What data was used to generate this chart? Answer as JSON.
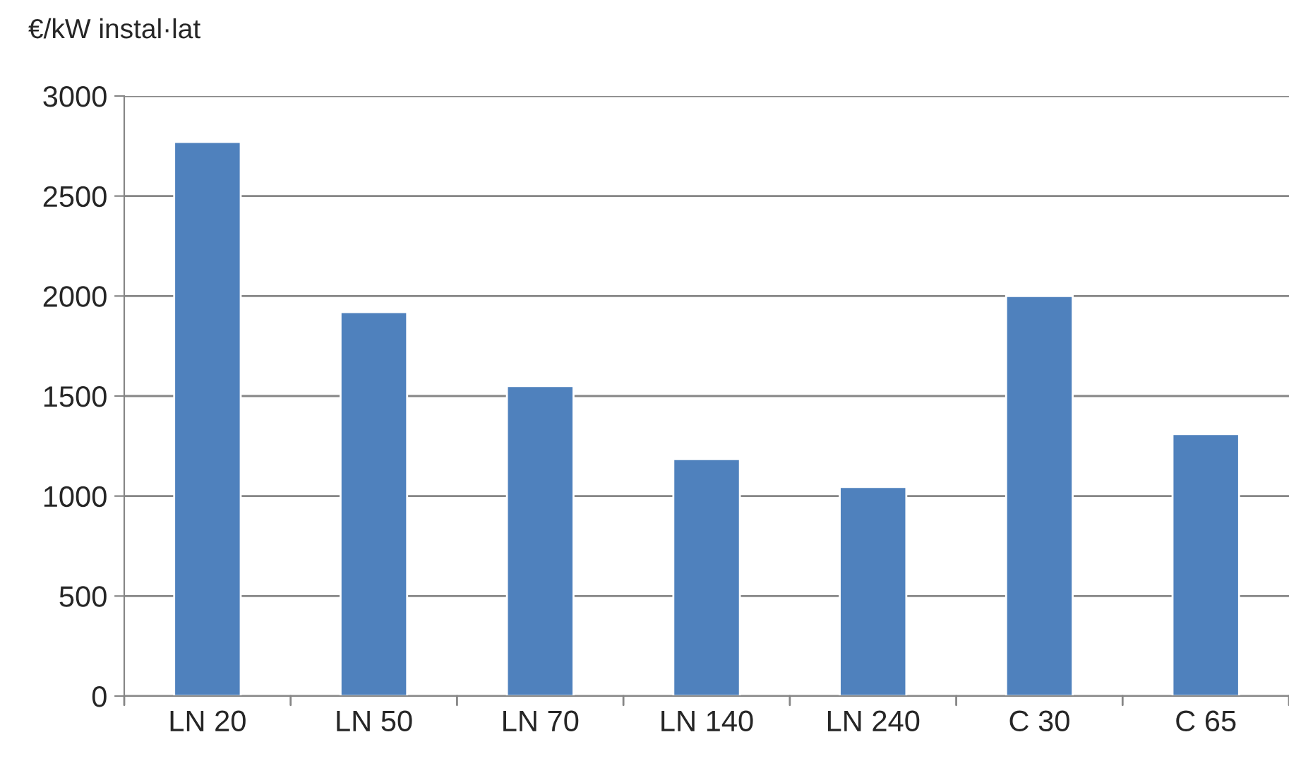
{
  "chart_data": {
    "type": "bar",
    "ylabel": "€/kW instal·lat",
    "categories": [
      "LN 20",
      "LN 50",
      "LN 70",
      "LN 140",
      "LN 240",
      "C 30",
      "C 65"
    ],
    "values": [
      2770,
      1920,
      1550,
      1185,
      1045,
      2000,
      1310
    ],
    "color": "#4f81bd",
    "ylim": [
      0,
      3000
    ],
    "yticks": [
      0,
      500,
      1000,
      1500,
      2000,
      2500,
      3000
    ],
    "grid": "y"
  }
}
